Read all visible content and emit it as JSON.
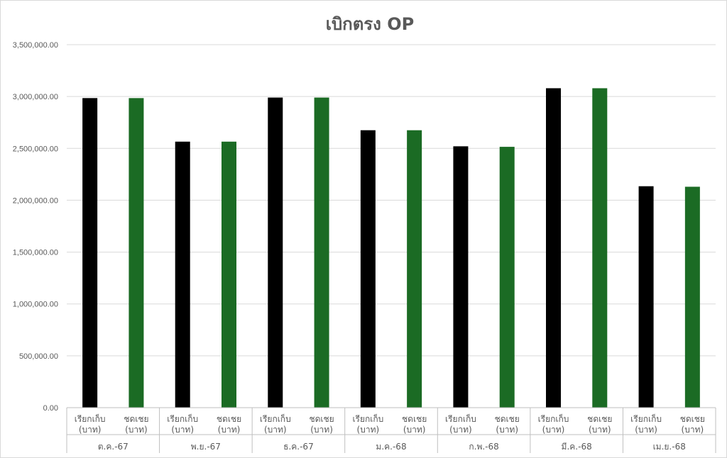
{
  "chart_data": {
    "type": "bar",
    "title": "เบิกตรง OP",
    "y_ticks": [
      "0.00",
      "500,000.00",
      "1,000,000.00",
      "1,500,000.00",
      "2,000,000.00",
      "2,500,000.00",
      "3,000,000.00",
      "3,500,000.00"
    ],
    "ylim": [
      0,
      3500000
    ],
    "grid": true,
    "groups": [
      {
        "label": "ต.ค.-67",
        "bars": [
          {
            "label_top": "เรียกเก็บ",
            "label_bottom": "(บาท)",
            "value": 2985000,
            "color": "#000000"
          },
          {
            "label_top": "ชดเชย",
            "label_bottom": "(บาท)",
            "value": 2985000,
            "color": "#1b6b24"
          }
        ]
      },
      {
        "label": "พ.ย.-67",
        "bars": [
          {
            "label_top": "เรียกเก็บ",
            "label_bottom": "(บาท)",
            "value": 2565000,
            "color": "#000000"
          },
          {
            "label_top": "ชดเชย",
            "label_bottom": "(บาท)",
            "value": 2565000,
            "color": "#1b6b24"
          }
        ]
      },
      {
        "label": "ธ.ค.-67",
        "bars": [
          {
            "label_top": "เรียกเก็บ",
            "label_bottom": "(บาท)",
            "value": 2990000,
            "color": "#000000"
          },
          {
            "label_top": "ชดเชย",
            "label_bottom": "(บาท)",
            "value": 2990000,
            "color": "#1b6b24"
          }
        ]
      },
      {
        "label": "ม.ค.-68",
        "bars": [
          {
            "label_top": "เรียกเก็บ",
            "label_bottom": "(บาท)",
            "value": 2675000,
            "color": "#000000"
          },
          {
            "label_top": "ชดเชย",
            "label_bottom": "(บาท)",
            "value": 2675000,
            "color": "#1b6b24"
          }
        ]
      },
      {
        "label": "ก.พ.-68",
        "bars": [
          {
            "label_top": "เรียกเก็บ",
            "label_bottom": "(บาท)",
            "value": 2520000,
            "color": "#000000"
          },
          {
            "label_top": "ชดเชย",
            "label_bottom": "(บาท)",
            "value": 2515000,
            "color": "#1b6b24"
          }
        ]
      },
      {
        "label": "มี.ค.-68",
        "bars": [
          {
            "label_top": "เรียกเก็บ",
            "label_bottom": "(บาท)",
            "value": 3080000,
            "color": "#000000"
          },
          {
            "label_top": "ชดเชย",
            "label_bottom": "(บาท)",
            "value": 3080000,
            "color": "#1b6b24"
          }
        ]
      },
      {
        "label": "เม.ย.-68",
        "bars": [
          {
            "label_top": "เรียกเก็บ",
            "label_bottom": "(บาท)",
            "value": 2135000,
            "color": "#000000"
          },
          {
            "label_top": "ชดเชย",
            "label_bottom": "(บาท)",
            "value": 2130000,
            "color": "#1b6b24"
          }
        ]
      }
    ]
  }
}
